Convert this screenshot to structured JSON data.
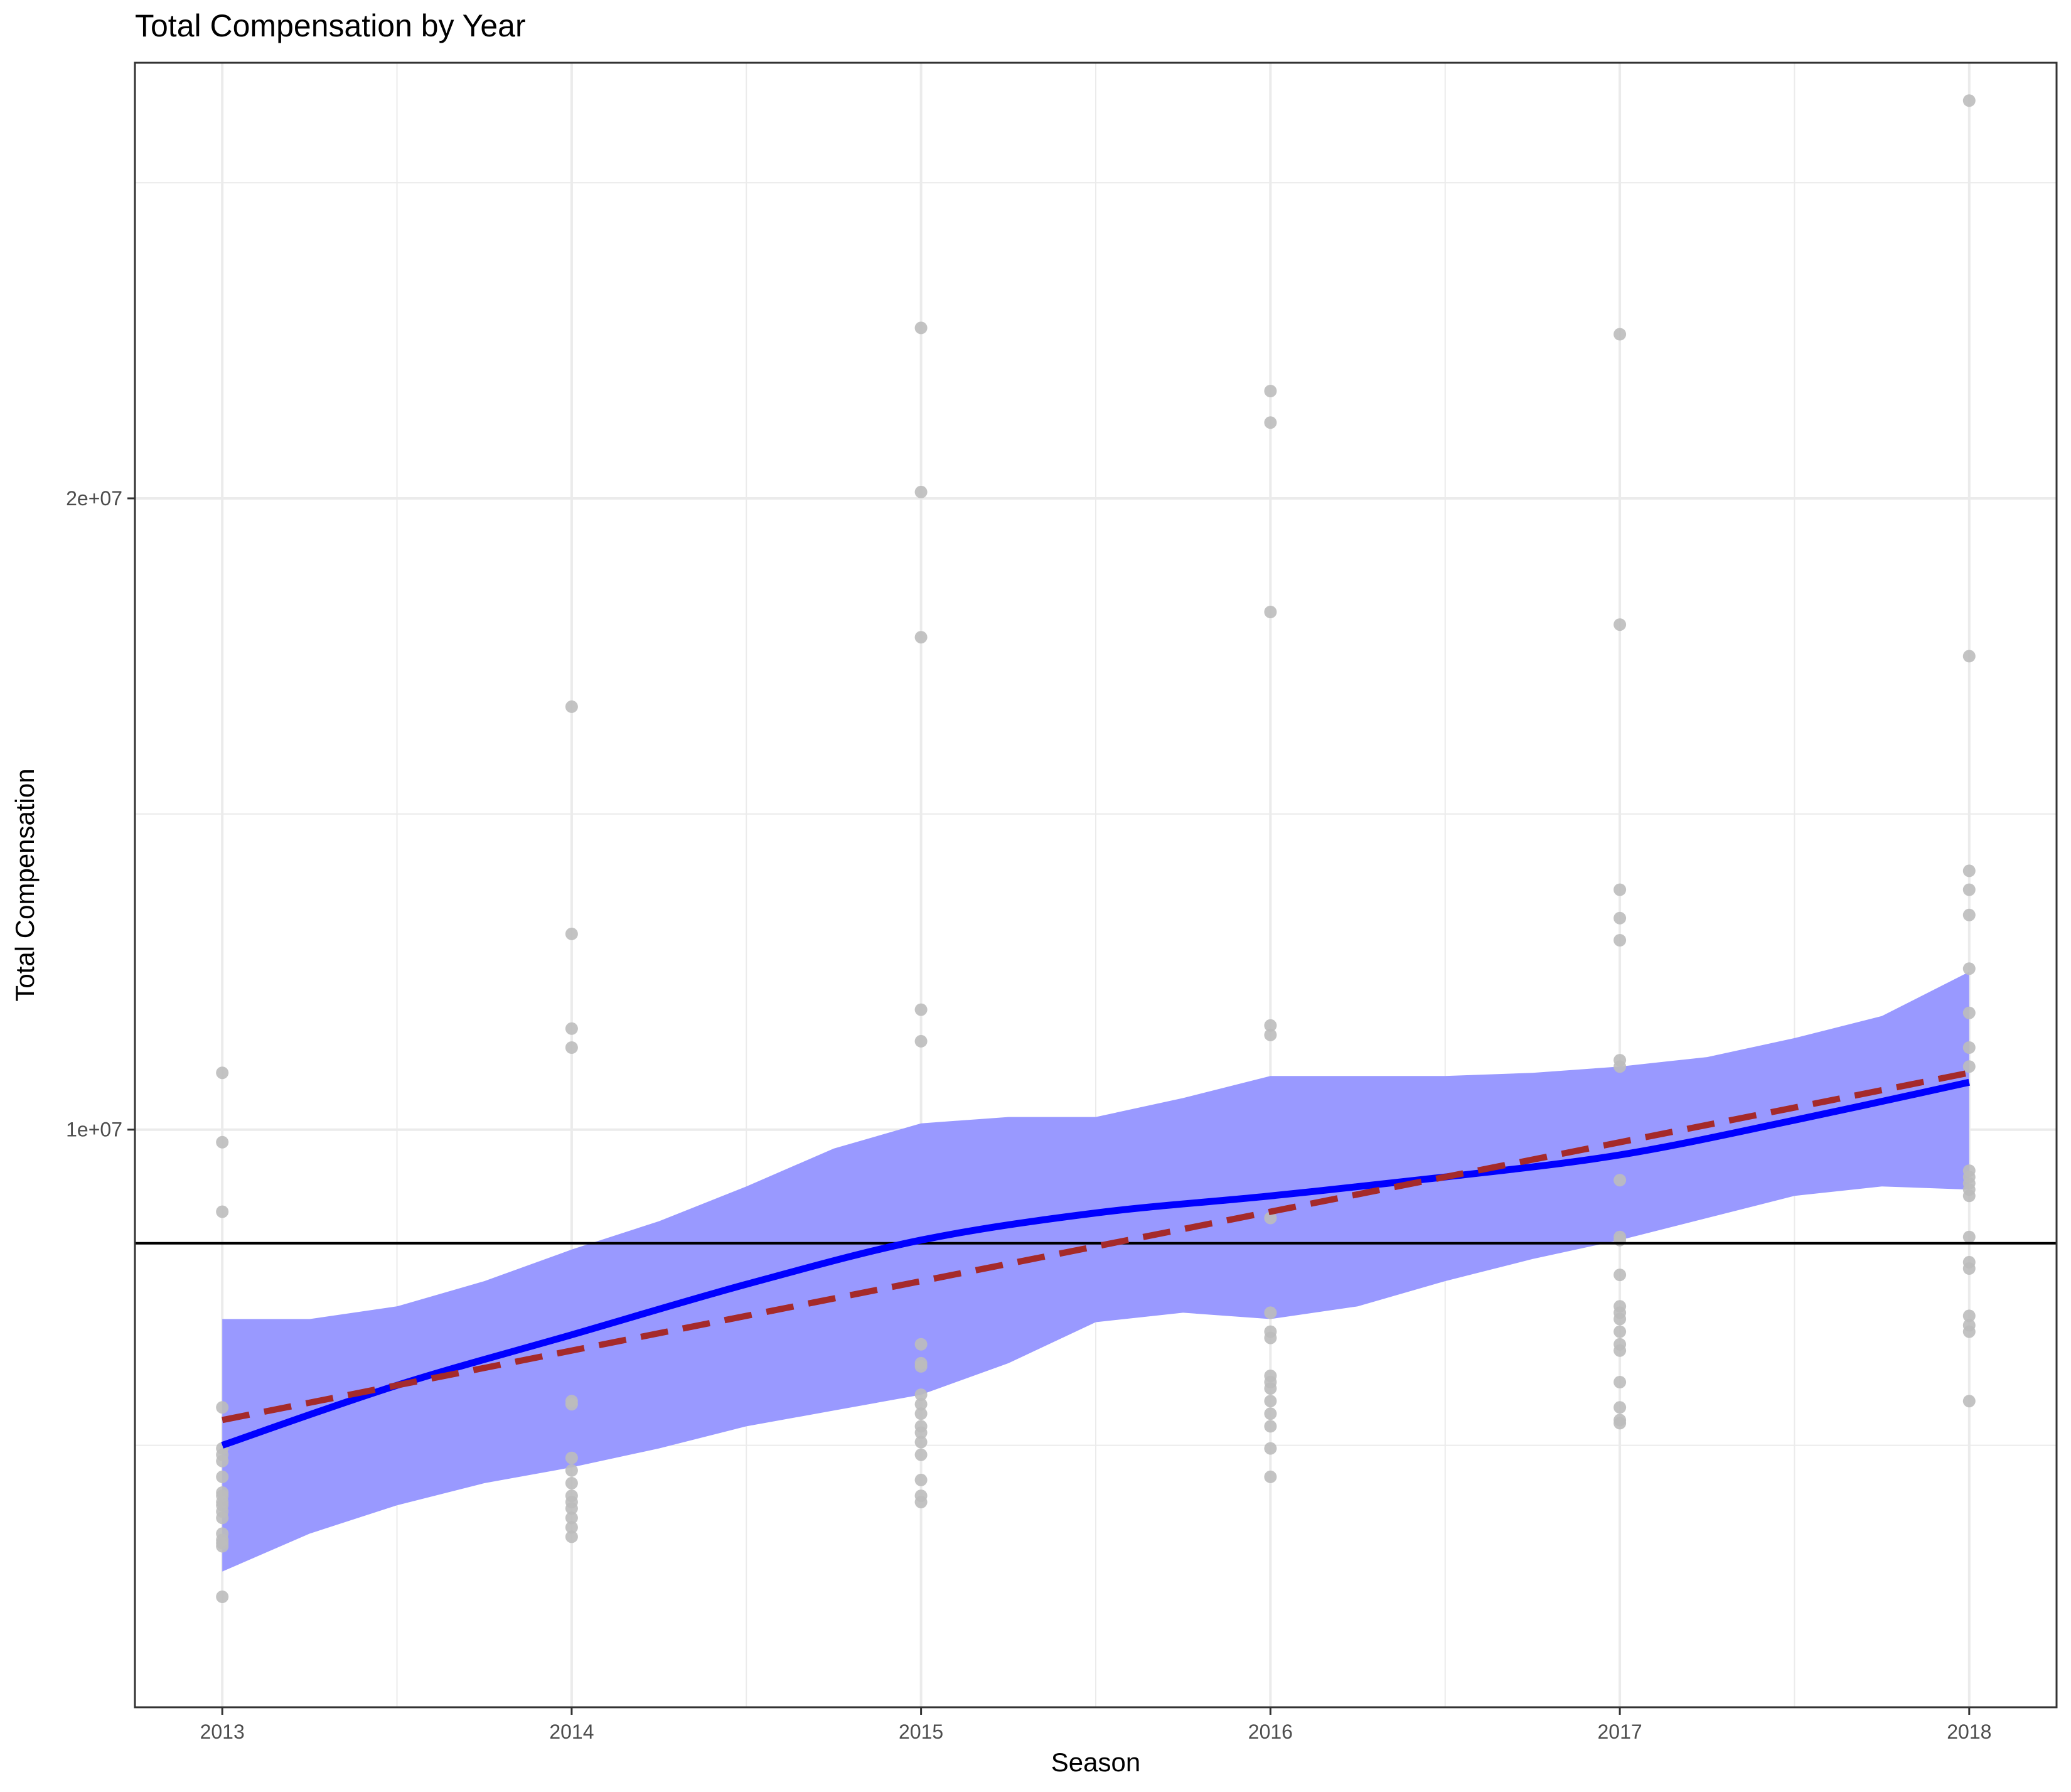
{
  "chart_data": {
    "type": "scatter",
    "title": "Total Compensation by Year",
    "xlabel": "Season",
    "ylabel": "Total Compensation",
    "xlim": [
      2012.75,
      2018.25
    ],
    "ylim": [
      850000,
      26900000
    ],
    "x_ticks": [
      2013,
      2014,
      2015,
      2016,
      2017,
      2018
    ],
    "x_tick_labels": [
      "2013",
      "2014",
      "2015",
      "2016",
      "2017",
      "2018"
    ],
    "y_ticks": [
      10000000,
      20000000
    ],
    "y_tick_labels": [
      "1e+07",
      "2e+07"
    ],
    "y_minor_gridlines": [
      5000000,
      15000000,
      25000000
    ],
    "x_minor_gridlines": [
      2013.5,
      2014.5,
      2015.5,
      2016.5,
      2017.5
    ],
    "grid": true,
    "theme": "black-and-white",
    "colors": {
      "points": "#bdbdbd",
      "band": "#9999ff",
      "smooth_line": "#0000ff",
      "linear_line": "#a52a2a",
      "reference_line": "#000000",
      "grid": "#ebebeb",
      "panel_border": "#333333"
    },
    "reference_line": {
      "y": 8200000
    },
    "points": [
      [
        2013,
        10900000
      ],
      [
        2013,
        9800000
      ],
      [
        2013,
        8700000
      ],
      [
        2013,
        5600000
      ],
      [
        2013,
        4950000
      ],
      [
        2013,
        4850000
      ],
      [
        2013,
        4750000
      ],
      [
        2013,
        4500000
      ],
      [
        2013,
        4250000
      ],
      [
        2013,
        4200000
      ],
      [
        2013,
        4100000
      ],
      [
        2013,
        4050000
      ],
      [
        2013,
        3950000
      ],
      [
        2013,
        3850000
      ],
      [
        2013,
        3600000
      ],
      [
        2013,
        3500000
      ],
      [
        2013,
        3450000
      ],
      [
        2013,
        3400000
      ],
      [
        2013,
        2600000
      ],
      [
        2014,
        16700000
      ],
      [
        2014,
        13100000
      ],
      [
        2014,
        11600000
      ],
      [
        2014,
        11300000
      ],
      [
        2014,
        5700000
      ],
      [
        2014,
        5650000
      ],
      [
        2014,
        4800000
      ],
      [
        2014,
        4600000
      ],
      [
        2014,
        4400000
      ],
      [
        2014,
        4200000
      ],
      [
        2014,
        4100000
      ],
      [
        2014,
        4000000
      ],
      [
        2014,
        3850000
      ],
      [
        2014,
        3700000
      ],
      [
        2014,
        3550000
      ],
      [
        2015,
        22700000
      ],
      [
        2015,
        20100000
      ],
      [
        2015,
        17800000
      ],
      [
        2015,
        11900000
      ],
      [
        2015,
        11400000
      ],
      [
        2015,
        6600000
      ],
      [
        2015,
        6300000
      ],
      [
        2015,
        6250000
      ],
      [
        2015,
        5800000
      ],
      [
        2015,
        5650000
      ],
      [
        2015,
        5500000
      ],
      [
        2015,
        5300000
      ],
      [
        2015,
        5200000
      ],
      [
        2015,
        5050000
      ],
      [
        2015,
        4850000
      ],
      [
        2015,
        4450000
      ],
      [
        2015,
        4200000
      ],
      [
        2015,
        4100000
      ],
      [
        2016,
        21700000
      ],
      [
        2016,
        21200000
      ],
      [
        2016,
        18200000
      ],
      [
        2016,
        11650000
      ],
      [
        2016,
        11500000
      ],
      [
        2016,
        8600000
      ],
      [
        2016,
        7100000
      ],
      [
        2016,
        6800000
      ],
      [
        2016,
        6700000
      ],
      [
        2016,
        6100000
      ],
      [
        2016,
        6000000
      ],
      [
        2016,
        5900000
      ],
      [
        2016,
        5700000
      ],
      [
        2016,
        5500000
      ],
      [
        2016,
        5300000
      ],
      [
        2016,
        4950000
      ],
      [
        2016,
        4500000
      ],
      [
        2017,
        22600000
      ],
      [
        2017,
        18000000
      ],
      [
        2017,
        13800000
      ],
      [
        2017,
        13350000
      ],
      [
        2017,
        13000000
      ],
      [
        2017,
        11100000
      ],
      [
        2017,
        11000000
      ],
      [
        2017,
        9200000
      ],
      [
        2017,
        8300000
      ],
      [
        2017,
        8250000
      ],
      [
        2017,
        7700000
      ],
      [
        2017,
        7200000
      ],
      [
        2017,
        7100000
      ],
      [
        2017,
        7000000
      ],
      [
        2017,
        6800000
      ],
      [
        2017,
        6600000
      ],
      [
        2017,
        6500000
      ],
      [
        2017,
        6000000
      ],
      [
        2017,
        5600000
      ],
      [
        2017,
        5400000
      ],
      [
        2017,
        5350000
      ],
      [
        2018,
        26300000
      ],
      [
        2018,
        17500000
      ],
      [
        2018,
        14100000
      ],
      [
        2018,
        13800000
      ],
      [
        2018,
        13400000
      ],
      [
        2018,
        12550000
      ],
      [
        2018,
        11850000
      ],
      [
        2018,
        11300000
      ],
      [
        2018,
        11000000
      ],
      [
        2018,
        9350000
      ],
      [
        2018,
        9250000
      ],
      [
        2018,
        9150000
      ],
      [
        2018,
        9050000
      ],
      [
        2018,
        8950000
      ],
      [
        2018,
        8300000
      ],
      [
        2018,
        7900000
      ],
      [
        2018,
        7800000
      ],
      [
        2018,
        7050000
      ],
      [
        2018,
        6900000
      ],
      [
        2018,
        6800000
      ],
      [
        2018,
        5700000
      ]
    ],
    "smooth_fit": {
      "x": [
        2013,
        2013.5,
        2014,
        2014.5,
        2015,
        2015.5,
        2016,
        2016.5,
        2017,
        2017.5,
        2018
      ],
      "y": [
        5000000,
        5950000,
        6750000,
        7550000,
        8250000,
        8680000,
        8950000,
        9250000,
        9600000,
        10150000,
        10750000
      ]
    },
    "smooth_band": {
      "x": [
        2013,
        2013.25,
        2013.5,
        2013.75,
        2014,
        2014.25,
        2014.5,
        2014.75,
        2015,
        2015.25,
        2015.5,
        2015.75,
        2016,
        2016.25,
        2016.5,
        2016.75,
        2017,
        2017.25,
        2017.5,
        2017.75,
        2018
      ],
      "upper": [
        7000000,
        7000000,
        7200000,
        7600000,
        8100000,
        8550000,
        9100000,
        9700000,
        10100000,
        10200000,
        10200000,
        10500000,
        10850000,
        10850000,
        10850000,
        10900000,
        11000000,
        11150000,
        11450000,
        11800000,
        12500000
      ],
      "lower": [
        3000000,
        3600000,
        4050000,
        4400000,
        4650000,
        4950000,
        5300000,
        5550000,
        5800000,
        6300000,
        6950000,
        7100000,
        7000000,
        7200000,
        7600000,
        7950000,
        8250000,
        8600000,
        8950000,
        9100000,
        9050000
      ]
    },
    "linear_fit": {
      "x": [
        2013,
        2018
      ],
      "y": [
        5400000,
        10900000
      ]
    }
  }
}
